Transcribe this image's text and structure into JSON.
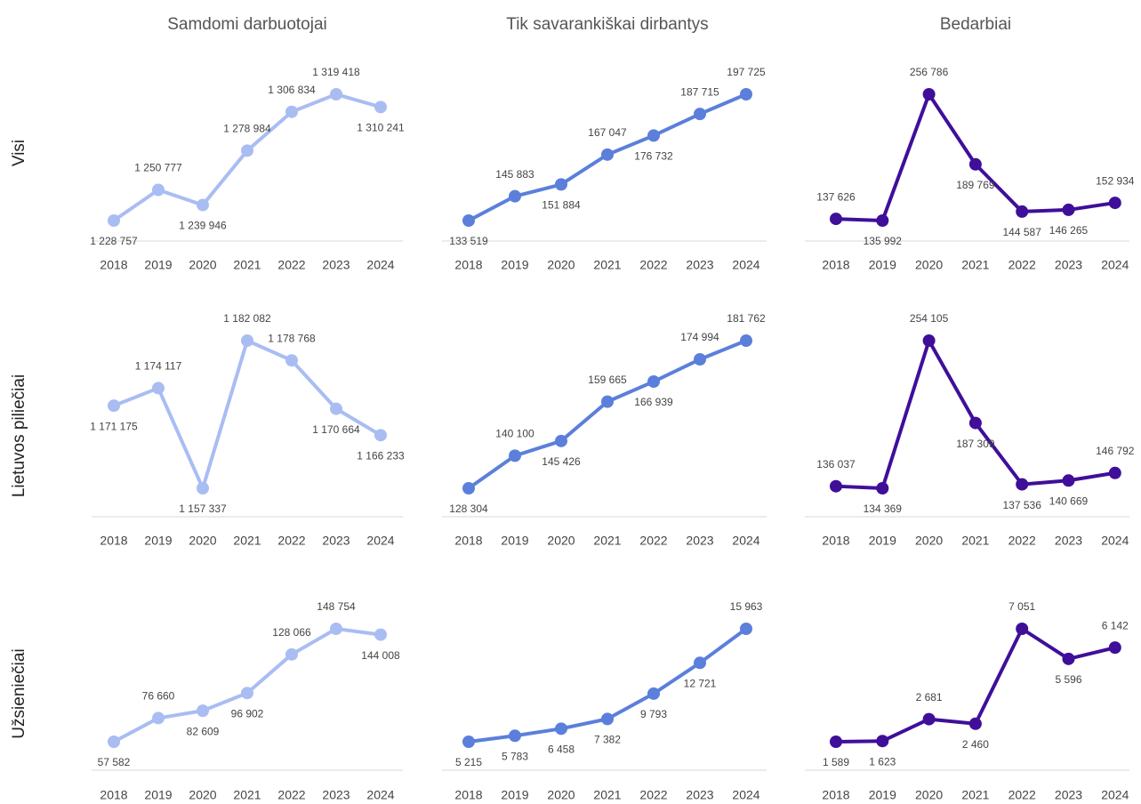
{
  "column_titles": [
    "Samdomi darbuotojai",
    "Tik savarankiškai dirbantys",
    "Bedarbiai"
  ],
  "row_labels": [
    "Visi",
    "Lietuvos piliečiai",
    "Užsieniečiai"
  ],
  "chart_data": [
    {
      "type": "line",
      "color": "#a9bdf3",
      "categories": [
        "2018",
        "2019",
        "2020",
        "2021",
        "2022",
        "2023",
        "2024"
      ],
      "values": [
        1228757,
        1250777,
        1239946,
        1278984,
        1306834,
        1319418,
        1310241
      ],
      "value_labels": [
        "1 228 757",
        "1 250 777",
        "1 239 946",
        "1 278 984",
        "1 306 834",
        "1 319 418",
        "1 310 241"
      ]
    },
    {
      "type": "line",
      "color": "#5b7fdb",
      "categories": [
        "2018",
        "2019",
        "2020",
        "2021",
        "2022",
        "2023",
        "2024"
      ],
      "values": [
        133519,
        145883,
        151884,
        167047,
        176732,
        187715,
        197725
      ],
      "value_labels": [
        "133 519",
        "145 883",
        "151 884",
        "167 047",
        "176 732",
        "187 715",
        "197 725"
      ]
    },
    {
      "type": "line",
      "color": "#3f0f9a",
      "categories": [
        "2018",
        "2019",
        "2020",
        "2021",
        "2022",
        "2023",
        "2024"
      ],
      "values": [
        137626,
        135992,
        256786,
        189769,
        144587,
        146265,
        152934
      ],
      "value_labels": [
        "137 626",
        "135 992",
        "256 786",
        "189 769",
        "144 587",
        "146 265",
        "152 934"
      ]
    },
    {
      "type": "line",
      "color": "#a9bdf3",
      "categories": [
        "2018",
        "2019",
        "2020",
        "2021",
        "2022",
        "2023",
        "2024"
      ],
      "values": [
        1171175,
        1174117,
        1157337,
        1182082,
        1178768,
        1170664,
        1166233
      ],
      "value_labels": [
        "1 171 175",
        "1 174 117",
        "1 157 337",
        "1 182 082",
        "1 178 768",
        "1 170 664",
        "1 166 233"
      ]
    },
    {
      "type": "line",
      "color": "#5b7fdb",
      "categories": [
        "2018",
        "2019",
        "2020",
        "2021",
        "2022",
        "2023",
        "2024"
      ],
      "values": [
        128304,
        140100,
        145426,
        159665,
        166939,
        174994,
        181762
      ],
      "value_labels": [
        "128 304",
        "140 100",
        "145 426",
        "159 665",
        "166 939",
        "174 994",
        "181 762"
      ]
    },
    {
      "type": "line",
      "color": "#3f0f9a",
      "categories": [
        "2018",
        "2019",
        "2020",
        "2021",
        "2022",
        "2023",
        "2024"
      ],
      "values": [
        136037,
        134369,
        254105,
        187309,
        137536,
        140669,
        146792
      ],
      "value_labels": [
        "136 037",
        "134 369",
        "254 105",
        "187 309",
        "137 536",
        "140 669",
        "146 792"
      ]
    },
    {
      "type": "line",
      "color": "#a9bdf3",
      "categories": [
        "2018",
        "2019",
        "2020",
        "2021",
        "2022",
        "2023",
        "2024"
      ],
      "values": [
        57582,
        76660,
        82609,
        96902,
        128066,
        148754,
        144008
      ],
      "value_labels": [
        "57 582",
        "76 660",
        "82 609",
        "96 902",
        "128 066",
        "148 754",
        "144 008"
      ]
    },
    {
      "type": "line",
      "color": "#5b7fdb",
      "categories": [
        "2018",
        "2019",
        "2020",
        "2021",
        "2022",
        "2023",
        "2024"
      ],
      "values": [
        5215,
        5783,
        6458,
        7382,
        9793,
        12721,
        15963
      ],
      "value_labels": [
        "5 215",
        "5 783",
        "6 458",
        "7 382",
        "9 793",
        "12 721",
        "15 963"
      ]
    },
    {
      "type": "line",
      "color": "#3f0f9a",
      "categories": [
        "2018",
        "2019",
        "2020",
        "2021",
        "2022",
        "2023",
        "2024"
      ],
      "values": [
        1589,
        1623,
        2681,
        2460,
        7051,
        5596,
        6142
      ],
      "value_labels": [
        "1 589",
        "1 623",
        "2 681",
        "2 460",
        "7 051",
        "5 596",
        "6 142"
      ]
    }
  ]
}
